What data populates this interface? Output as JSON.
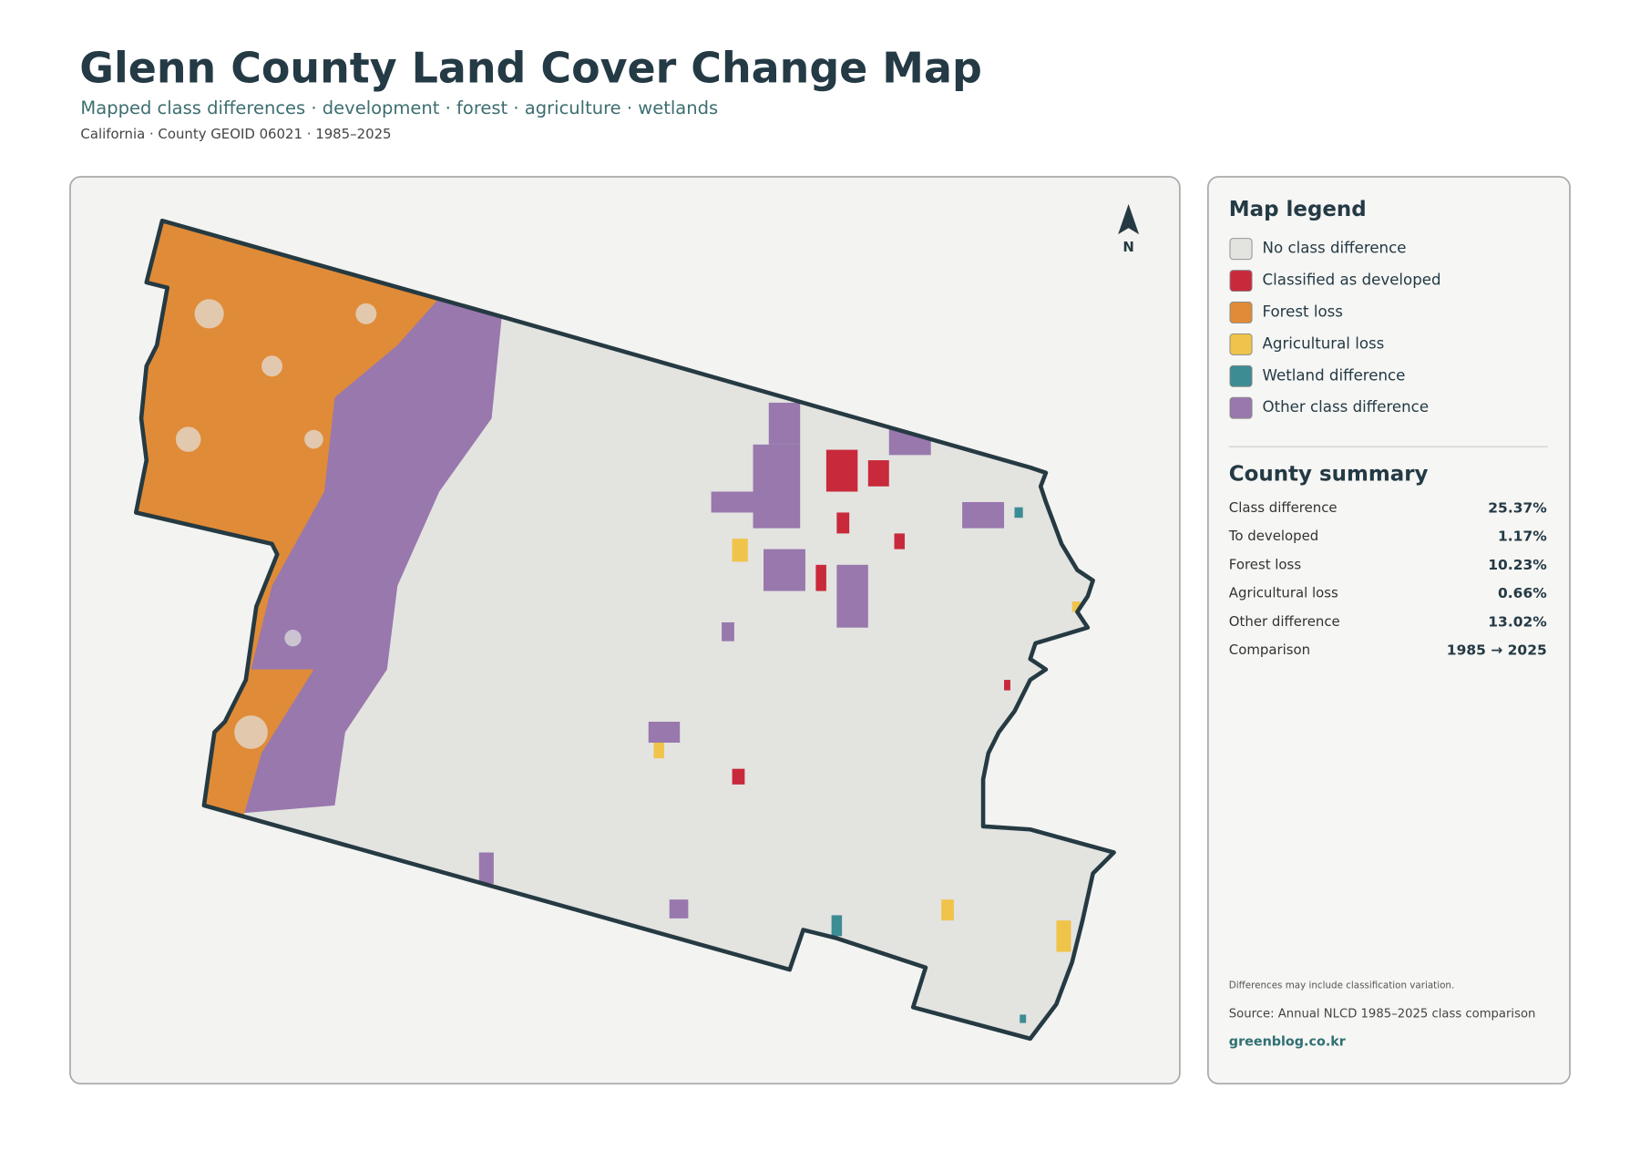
{
  "header": {
    "title": "Glenn County Land Cover Change Map",
    "subtitle": "Mapped class differences · development · forest · agriculture · wetlands",
    "meta": "California · County GEOID 06021 · 1985–2025"
  },
  "map": {
    "north": "N"
  },
  "legend": {
    "title": "Map legend",
    "items": [
      {
        "label": "No class difference",
        "color": "#e3e3e0"
      },
      {
        "label": "Classified as developed",
        "color": "#c8293b"
      },
      {
        "label": "Forest loss",
        "color": "#e08b38"
      },
      {
        "label": "Agricultural loss",
        "color": "#f0c44a"
      },
      {
        "label": "Wetland difference",
        "color": "#3c8c93"
      },
      {
        "label": "Other class difference",
        "color": "#9878ad"
      }
    ]
  },
  "summary": {
    "title": "County summary",
    "rows": [
      [
        "Class difference",
        "25.37%"
      ],
      [
        "To developed",
        "1.17%"
      ],
      [
        "Forest loss",
        "10.23%"
      ],
      [
        "Agricultural loss",
        "0.66%"
      ],
      [
        "Other difference",
        "13.02%"
      ],
      [
        "Comparison",
        "1985 → 2025"
      ]
    ]
  },
  "footer": {
    "note": "Differences may include classification variation.",
    "source": "Source: Annual NLCD 1985–2025 class comparison",
    "site": "greenblog.co.kr"
  }
}
